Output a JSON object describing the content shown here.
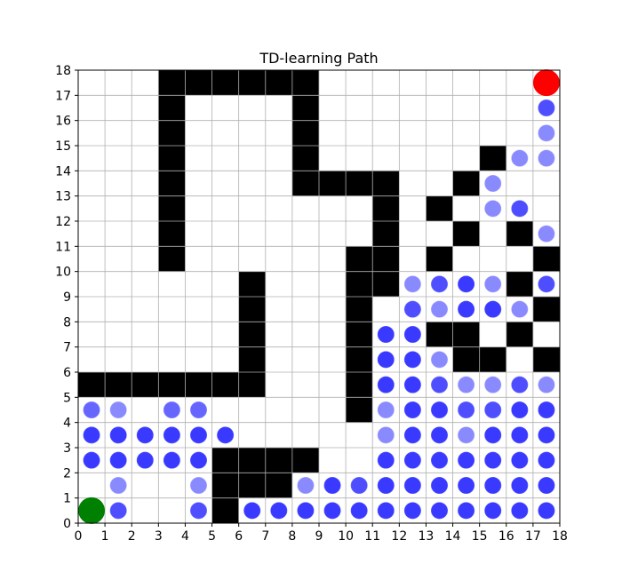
{
  "chart_data": {
    "type": "scatter",
    "title": "TD-learning Path",
    "xlabel": "",
    "ylabel": "",
    "xlim": [
      0,
      18
    ],
    "ylim": [
      0,
      18
    ],
    "xticks": [
      "0",
      "1",
      "2",
      "3",
      "4",
      "5",
      "6",
      "7",
      "8",
      "9",
      "10",
      "11",
      "12",
      "13",
      "14",
      "15",
      "16",
      "17",
      "18"
    ],
    "yticks": [
      "0",
      "1",
      "2",
      "3",
      "4",
      "5",
      "6",
      "7",
      "8",
      "9",
      "10",
      "11",
      "12",
      "13",
      "14",
      "15",
      "16",
      "17",
      "18"
    ],
    "grid": true,
    "colors": {
      "wall": "#000000",
      "path": "#0000ff",
      "start": "#008000",
      "goal": "#ff0000",
      "grid": "#b0b0b0"
    },
    "walls": [
      [
        3,
        17
      ],
      [
        4,
        17
      ],
      [
        5,
        17
      ],
      [
        6,
        17
      ],
      [
        7,
        17
      ],
      [
        8,
        17
      ],
      [
        3,
        16
      ],
      [
        8,
        16
      ],
      [
        3,
        15
      ],
      [
        8,
        15
      ],
      [
        3,
        14
      ],
      [
        8,
        14
      ],
      [
        15,
        14
      ],
      [
        3,
        13
      ],
      [
        8,
        13
      ],
      [
        9,
        13
      ],
      [
        10,
        13
      ],
      [
        11,
        13
      ],
      [
        14,
        13
      ],
      [
        3,
        12
      ],
      [
        11,
        12
      ],
      [
        13,
        12
      ],
      [
        3,
        11
      ],
      [
        11,
        11
      ],
      [
        14,
        11
      ],
      [
        16,
        11
      ],
      [
        3,
        10
      ],
      [
        10,
        10
      ],
      [
        11,
        10
      ],
      [
        13,
        10
      ],
      [
        17,
        10
      ],
      [
        6,
        9
      ],
      [
        10,
        9
      ],
      [
        11,
        9
      ],
      [
        16,
        9
      ],
      [
        6,
        8
      ],
      [
        10,
        8
      ],
      [
        17,
        8
      ],
      [
        6,
        7
      ],
      [
        10,
        7
      ],
      [
        13,
        7
      ],
      [
        14,
        7
      ],
      [
        16,
        7
      ],
      [
        6,
        6
      ],
      [
        10,
        6
      ],
      [
        14,
        6
      ],
      [
        15,
        6
      ],
      [
        17,
        6
      ],
      [
        0,
        5
      ],
      [
        1,
        5
      ],
      [
        2,
        5
      ],
      [
        3,
        5
      ],
      [
        4,
        5
      ],
      [
        5,
        5
      ],
      [
        6,
        5
      ],
      [
        10,
        5
      ],
      [
        10,
        4
      ],
      [
        5,
        2
      ],
      [
        6,
        2
      ],
      [
        7,
        2
      ],
      [
        8,
        2
      ],
      [
        5,
        1
      ],
      [
        6,
        1
      ],
      [
        7,
        1
      ],
      [
        5,
        0
      ]
    ],
    "start": [
      0.5,
      0.5
    ],
    "goal": [
      17.5,
      17.5
    ],
    "points": [
      {
        "x": 17.5,
        "y": 16.5,
        "a": 0.85
      },
      {
        "x": 17.5,
        "y": 15.5,
        "a": 0.5
      },
      {
        "x": 16.5,
        "y": 14.5,
        "a": 0.5
      },
      {
        "x": 17.5,
        "y": 14.5,
        "a": 0.5
      },
      {
        "x": 15.5,
        "y": 13.5,
        "a": 0.5
      },
      {
        "x": 15.5,
        "y": 12.5,
        "a": 0.5
      },
      {
        "x": 16.5,
        "y": 12.5,
        "a": 0.85
      },
      {
        "x": 17.5,
        "y": 11.5,
        "a": 0.5
      },
      {
        "x": 12.5,
        "y": 9.5,
        "a": 0.5
      },
      {
        "x": 13.5,
        "y": 9.5,
        "a": 0.85
      },
      {
        "x": 14.5,
        "y": 9.5,
        "a": 1
      },
      {
        "x": 15.5,
        "y": 9.5,
        "a": 0.5
      },
      {
        "x": 17.5,
        "y": 9.5,
        "a": 0.85
      },
      {
        "x": 12.5,
        "y": 8.5,
        "a": 0.85
      },
      {
        "x": 13.5,
        "y": 8.5,
        "a": 0.5
      },
      {
        "x": 14.5,
        "y": 8.5,
        "a": 1
      },
      {
        "x": 15.5,
        "y": 8.5,
        "a": 1
      },
      {
        "x": 16.5,
        "y": 8.5,
        "a": 0.5
      },
      {
        "x": 11.5,
        "y": 7.5,
        "a": 1
      },
      {
        "x": 12.5,
        "y": 7.5,
        "a": 1
      },
      {
        "x": 11.5,
        "y": 6.5,
        "a": 1
      },
      {
        "x": 12.5,
        "y": 6.5,
        "a": 1
      },
      {
        "x": 13.5,
        "y": 6.5,
        "a": 0.5
      },
      {
        "x": 11.5,
        "y": 5.5,
        "a": 1
      },
      {
        "x": 12.5,
        "y": 5.5,
        "a": 1
      },
      {
        "x": 13.5,
        "y": 5.5,
        "a": 0.85
      },
      {
        "x": 14.5,
        "y": 5.5,
        "a": 0.5
      },
      {
        "x": 15.5,
        "y": 5.5,
        "a": 0.5
      },
      {
        "x": 16.5,
        "y": 5.5,
        "a": 0.85
      },
      {
        "x": 17.5,
        "y": 5.5,
        "a": 0.5
      },
      {
        "x": 0.5,
        "y": 4.5,
        "a": 0.7
      },
      {
        "x": 1.5,
        "y": 4.5,
        "a": 0.5
      },
      {
        "x": 3.5,
        "y": 4.5,
        "a": 0.7
      },
      {
        "x": 4.5,
        "y": 4.5,
        "a": 0.7
      },
      {
        "x": 11.5,
        "y": 4.5,
        "a": 0.5
      },
      {
        "x": 12.5,
        "y": 4.5,
        "a": 1
      },
      {
        "x": 13.5,
        "y": 4.5,
        "a": 1
      },
      {
        "x": 14.5,
        "y": 4.5,
        "a": 0.85
      },
      {
        "x": 15.5,
        "y": 4.5,
        "a": 0.85
      },
      {
        "x": 16.5,
        "y": 4.5,
        "a": 1
      },
      {
        "x": 17.5,
        "y": 4.5,
        "a": 1
      },
      {
        "x": 0.5,
        "y": 3.5,
        "a": 1
      },
      {
        "x": 1.5,
        "y": 3.5,
        "a": 1
      },
      {
        "x": 2.5,
        "y": 3.5,
        "a": 1
      },
      {
        "x": 3.5,
        "y": 3.5,
        "a": 1
      },
      {
        "x": 4.5,
        "y": 3.5,
        "a": 1
      },
      {
        "x": 5.5,
        "y": 3.5,
        "a": 1
      },
      {
        "x": 11.5,
        "y": 3.5,
        "a": 0.5
      },
      {
        "x": 12.5,
        "y": 3.5,
        "a": 1
      },
      {
        "x": 13.5,
        "y": 3.5,
        "a": 1
      },
      {
        "x": 14.5,
        "y": 3.5,
        "a": 0.5
      },
      {
        "x": 15.5,
        "y": 3.5,
        "a": 1
      },
      {
        "x": 16.5,
        "y": 3.5,
        "a": 1
      },
      {
        "x": 17.5,
        "y": 3.5,
        "a": 1
      },
      {
        "x": 0.5,
        "y": 2.5,
        "a": 1
      },
      {
        "x": 1.5,
        "y": 2.5,
        "a": 1
      },
      {
        "x": 2.5,
        "y": 2.5,
        "a": 1
      },
      {
        "x": 3.5,
        "y": 2.5,
        "a": 1
      },
      {
        "x": 4.5,
        "y": 2.5,
        "a": 1
      },
      {
        "x": 11.5,
        "y": 2.5,
        "a": 1
      },
      {
        "x": 12.5,
        "y": 2.5,
        "a": 1
      },
      {
        "x": 13.5,
        "y": 2.5,
        "a": 1
      },
      {
        "x": 14.5,
        "y": 2.5,
        "a": 1
      },
      {
        "x": 15.5,
        "y": 2.5,
        "a": 1
      },
      {
        "x": 16.5,
        "y": 2.5,
        "a": 1
      },
      {
        "x": 17.5,
        "y": 2.5,
        "a": 1
      },
      {
        "x": 1.5,
        "y": 1.5,
        "a": 0.5
      },
      {
        "x": 4.5,
        "y": 1.5,
        "a": 0.5
      },
      {
        "x": 8.5,
        "y": 1.5,
        "a": 0.5
      },
      {
        "x": 9.5,
        "y": 1.5,
        "a": 1
      },
      {
        "x": 10.5,
        "y": 1.5,
        "a": 0.85
      },
      {
        "x": 11.5,
        "y": 1.5,
        "a": 1
      },
      {
        "x": 12.5,
        "y": 1.5,
        "a": 1
      },
      {
        "x": 13.5,
        "y": 1.5,
        "a": 1
      },
      {
        "x": 14.5,
        "y": 1.5,
        "a": 1
      },
      {
        "x": 15.5,
        "y": 1.5,
        "a": 1
      },
      {
        "x": 16.5,
        "y": 1.5,
        "a": 1
      },
      {
        "x": 17.5,
        "y": 1.5,
        "a": 1
      },
      {
        "x": 1.5,
        "y": 0.5,
        "a": 0.85
      },
      {
        "x": 4.5,
        "y": 0.5,
        "a": 0.85
      },
      {
        "x": 6.5,
        "y": 0.5,
        "a": 1
      },
      {
        "x": 7.5,
        "y": 0.5,
        "a": 1
      },
      {
        "x": 8.5,
        "y": 0.5,
        "a": 1
      },
      {
        "x": 9.5,
        "y": 0.5,
        "a": 1
      },
      {
        "x": 10.5,
        "y": 0.5,
        "a": 1
      },
      {
        "x": 11.5,
        "y": 0.5,
        "a": 1
      },
      {
        "x": 12.5,
        "y": 0.5,
        "a": 1
      },
      {
        "x": 13.5,
        "y": 0.5,
        "a": 1
      },
      {
        "x": 14.5,
        "y": 0.5,
        "a": 1
      },
      {
        "x": 15.5,
        "y": 0.5,
        "a": 1
      },
      {
        "x": 16.5,
        "y": 0.5,
        "a": 1
      },
      {
        "x": 17.5,
        "y": 0.5,
        "a": 1
      }
    ]
  }
}
